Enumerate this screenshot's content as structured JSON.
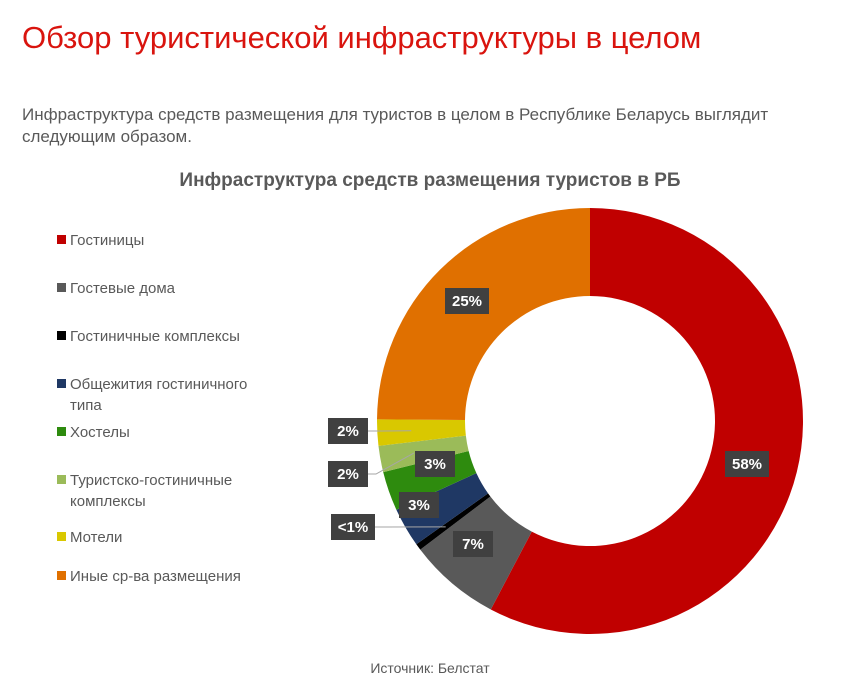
{
  "title": "Обзор туристической инфраструктуры в целом",
  "intro": "Инфраструктура средств размещения для туристов в целом в Республике Беларусь выглядит следующим образом.",
  "source": "Источник: Белстат",
  "chart_data": {
    "type": "pie",
    "donut": true,
    "title": "Инфраструктура средств размещения туристов в РБ",
    "legend_position": "left",
    "categories": [
      "Гостиницы",
      "Гостевые дома",
      "Гостиничные комплексы",
      "Общежития гостиничного типа",
      "Хостелы",
      "Туристско-гостиничные комплексы",
      "Мотели",
      "Иные ср-ва размещения"
    ],
    "values": [
      58,
      7,
      0.5,
      3,
      3,
      2,
      2,
      25
    ],
    "labels": [
      "58%",
      "7%",
      "<1%",
      "3%",
      "3%",
      "2%",
      "2%",
      "25%"
    ],
    "colors": [
      "#c00000",
      "#595959",
      "#000000",
      "#1f3864",
      "#2e8b0e",
      "#9bbb59",
      "#d9c800",
      "#e07000"
    ]
  }
}
